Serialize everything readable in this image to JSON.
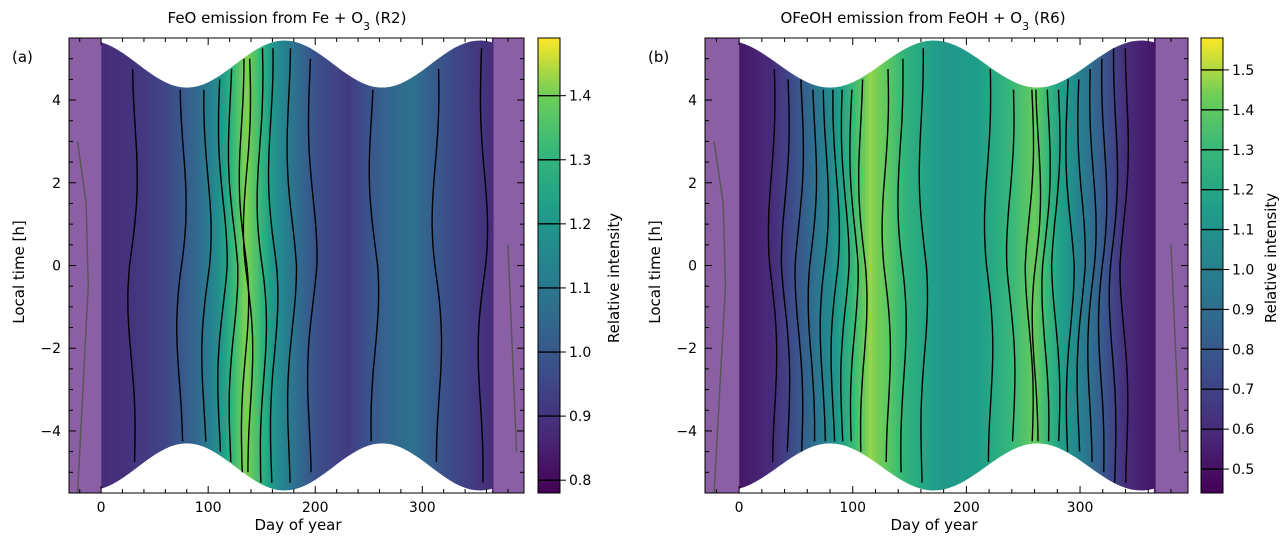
{
  "chart_data": [
    {
      "type": "heatmap",
      "panel_label": "(a)",
      "title": "FeO emission from Fe + O",
      "title_sub": "3",
      "title_suffix": " (R2)",
      "xlabel": "Day of year",
      "ylabel": "Local time [h]",
      "xlim": [
        -30,
        395
      ],
      "ylim": [
        -5.5,
        5.5
      ],
      "xticks": [
        0,
        100,
        200,
        300
      ],
      "yticks": [
        -4,
        -2,
        0,
        2,
        4
      ],
      "colorbar": {
        "label": "Relative intensity",
        "range": [
          0.78,
          1.49
        ],
        "ticks": [
          0.8,
          0.9,
          1.0,
          1.1,
          1.2,
          1.3,
          1.4
        ],
        "tick_labels": [
          "0.8",
          "0.9",
          "1.0",
          "1.1",
          "1.2",
          "1.3",
          "1.4"
        ]
      },
      "colormap": "viridis",
      "field": {
        "days": [
          0,
          30,
          60,
          90,
          110,
          125,
          135,
          145,
          160,
          180,
          200,
          230,
          260,
          290,
          320,
          365
        ],
        "values": [
          0.88,
          0.9,
          0.95,
          1.05,
          1.18,
          1.33,
          1.42,
          1.35,
          1.2,
          1.08,
          0.98,
          0.92,
          1.02,
          1.08,
          0.98,
          0.88
        ]
      }
    },
    {
      "type": "heatmap",
      "panel_label": "(b)",
      "title": "OFeOH emission from FeOH + O",
      "title_sub": "3",
      "title_suffix": " (R6)",
      "xlabel": "Day of year",
      "ylabel": "Local time [h]",
      "xlim": [
        -30,
        395
      ],
      "ylim": [
        -5.5,
        5.5
      ],
      "xticks": [
        0,
        100,
        200,
        300
      ],
      "yticks": [
        -4,
        -2,
        0,
        2,
        4
      ],
      "colorbar": {
        "label": "Relative intensity",
        "range": [
          0.44,
          1.58
        ],
        "ticks": [
          0.5,
          0.6,
          0.7,
          0.8,
          0.9,
          1.0,
          1.1,
          1.2,
          1.3,
          1.4,
          1.5
        ],
        "tick_labels": [
          "0.5",
          "0.6",
          "0.7",
          "0.8",
          "0.9",
          "1.0",
          "1.1",
          "1.2",
          "1.3",
          "1.4",
          "1.5"
        ]
      },
      "colormap": "viridis",
      "field": {
        "days": [
          0,
          30,
          60,
          80,
          100,
          115,
          130,
          150,
          180,
          210,
          240,
          260,
          280,
          310,
          340,
          365
        ],
        "values": [
          0.52,
          0.6,
          0.85,
          1.05,
          1.3,
          1.48,
          1.4,
          1.25,
          1.12,
          1.15,
          1.3,
          1.42,
          1.2,
          0.9,
          0.6,
          0.52
        ]
      }
    }
  ]
}
